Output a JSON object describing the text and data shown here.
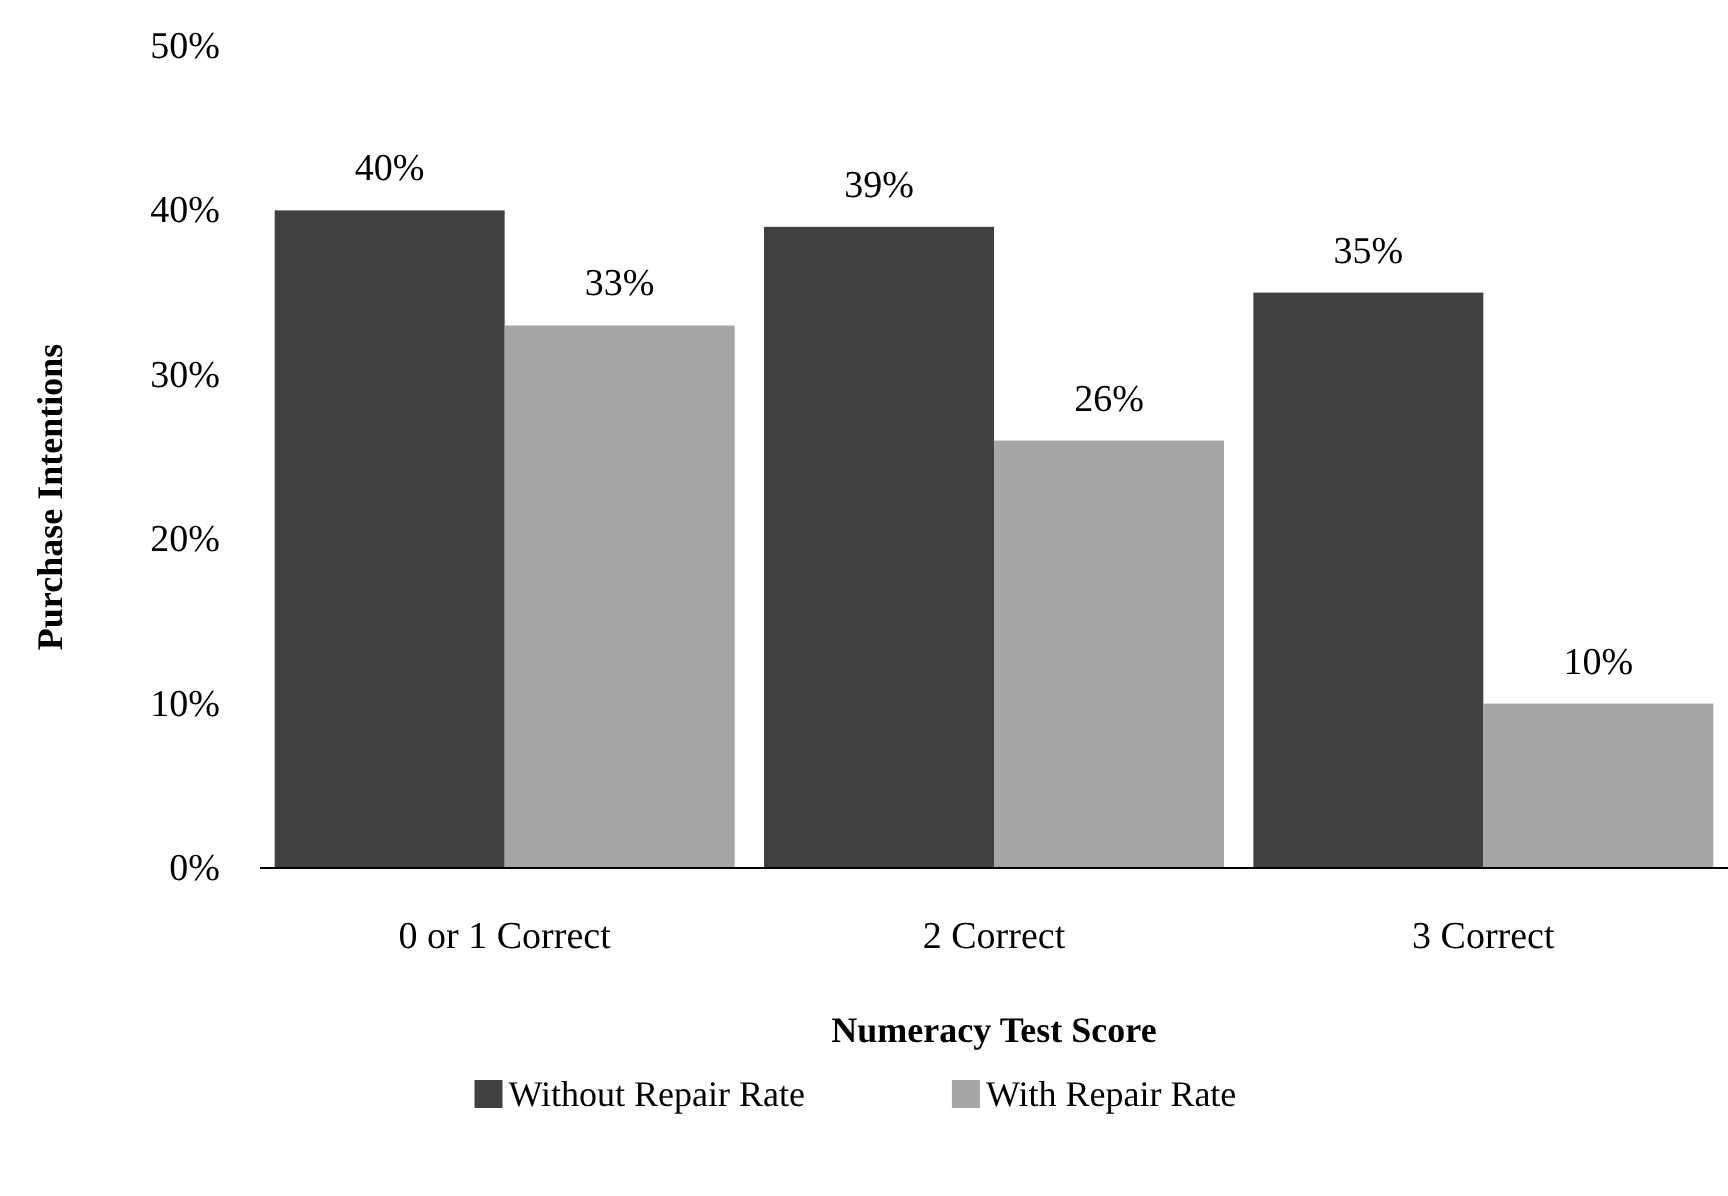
{
  "chart_data": {
    "type": "bar",
    "xlabel": "Numeracy Test Score",
    "ylabel": "Purchase Intentions",
    "categories": [
      "0 or 1 Correct",
      "2 Correct",
      "3 Correct"
    ],
    "series": [
      {
        "name": "Without Repair Rate",
        "color": "#404040",
        "values": [
          40,
          39,
          35
        ],
        "value_labels": [
          "40%",
          "39%",
          "35%"
        ]
      },
      {
        "name": "With Repair Rate",
        "color": "#a6a6a6",
        "values": [
          33,
          26,
          10
        ],
        "value_labels": [
          "33%",
          "26%",
          "10%"
        ]
      }
    ],
    "ylim": [
      0,
      50
    ],
    "yticks": [
      {
        "value": 0,
        "label": "0%"
      },
      {
        "value": 10,
        "label": "10%"
      },
      {
        "value": 20,
        "label": "20%"
      },
      {
        "value": 30,
        "label": "30%"
      },
      {
        "value": 40,
        "label": "40%"
      },
      {
        "value": 50,
        "label": "50%"
      }
    ],
    "grid": false,
    "legend": "bottom"
  }
}
